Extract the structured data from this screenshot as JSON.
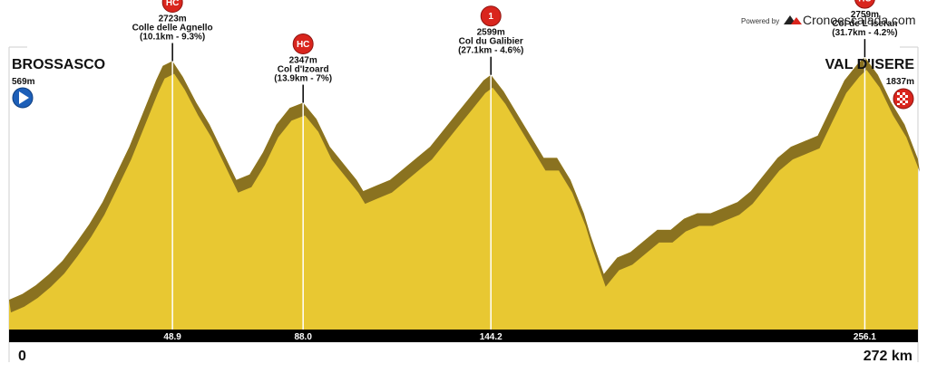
{
  "brand": {
    "powered_by": "Powered by",
    "name": "Cronoescalada.com",
    "accent": "#d9251d"
  },
  "colors": {
    "profile_fill": "#e8c832",
    "profile_shadow": "#8a7220",
    "axis_bar": "#000000",
    "marker_red": "#d9251d",
    "start_blue": "#1d5fb8"
  },
  "start": {
    "name": "BROSSASCO",
    "altitude": "569m",
    "km": "0",
    "icon": "play-arrow-icon"
  },
  "finish": {
    "name": "VAL D'ISERE",
    "altitude": "1837m",
    "km": "272 km",
    "icon": "checkered-flag-icon"
  },
  "climbs": [
    {
      "category": "HC",
      "altitude": "2723m",
      "name": "Colle delle Agnello",
      "detail": "(10.1km - 9.3%)",
      "km": "48.9"
    },
    {
      "category": "HC",
      "altitude": "2347m",
      "name": "Col d'Izoard",
      "detail": "(13.9km - 7%)",
      "km": "88.0"
    },
    {
      "category": "1",
      "altitude": "2599m",
      "name": "Col du Galibier",
      "detail": "(27.1km - 4.6%)",
      "km": "144.2"
    },
    {
      "category": "HC",
      "altitude": "2759m",
      "name": "Col de L´Iseran",
      "detail": "(31.7km - 4.2%)",
      "km": "256.1"
    }
  ],
  "chart_data": {
    "type": "area",
    "title": "",
    "xlabel": "",
    "ylabel": "",
    "xlim": [
      0,
      272
    ],
    "ylim": [
      300,
      2850
    ],
    "grid": false,
    "x": [
      0,
      4,
      8,
      12,
      16,
      20,
      24,
      28,
      32,
      36,
      40,
      44,
      46,
      48.9,
      52,
      56,
      60,
      64,
      68,
      72,
      76,
      80,
      84,
      88.0,
      92,
      96,
      100,
      104,
      106,
      110,
      114,
      118,
      122,
      126,
      130,
      134,
      138,
      142,
      144.2,
      148,
      152,
      156,
      160,
      164,
      168,
      172,
      174,
      178,
      182,
      186,
      190,
      194,
      198,
      202,
      206,
      210,
      214,
      218,
      222,
      226,
      230,
      234,
      238,
      242,
      246,
      250,
      254,
      256.1,
      260,
      264,
      268,
      272
    ],
    "y": [
      569,
      620,
      700,
      800,
      920,
      1080,
      1250,
      1450,
      1700,
      1950,
      2250,
      2550,
      2680,
      2723,
      2580,
      2350,
      2150,
      1900,
      1650,
      1700,
      1900,
      2150,
      2300,
      2347,
      2200,
      1950,
      1800,
      1650,
      1550,
      1600,
      1650,
      1750,
      1850,
      1950,
      2100,
      2250,
      2400,
      2550,
      2599,
      2450,
      2250,
      2050,
      1850,
      1850,
      1650,
      1350,
      1150,
      800,
      950,
      1000,
      1100,
      1200,
      1200,
      1300,
      1350,
      1350,
      1400,
      1450,
      1550,
      1700,
      1850,
      1950,
      2000,
      2050,
      2300,
      2550,
      2700,
      2759,
      2600,
      2350,
      2150,
      1837
    ]
  }
}
